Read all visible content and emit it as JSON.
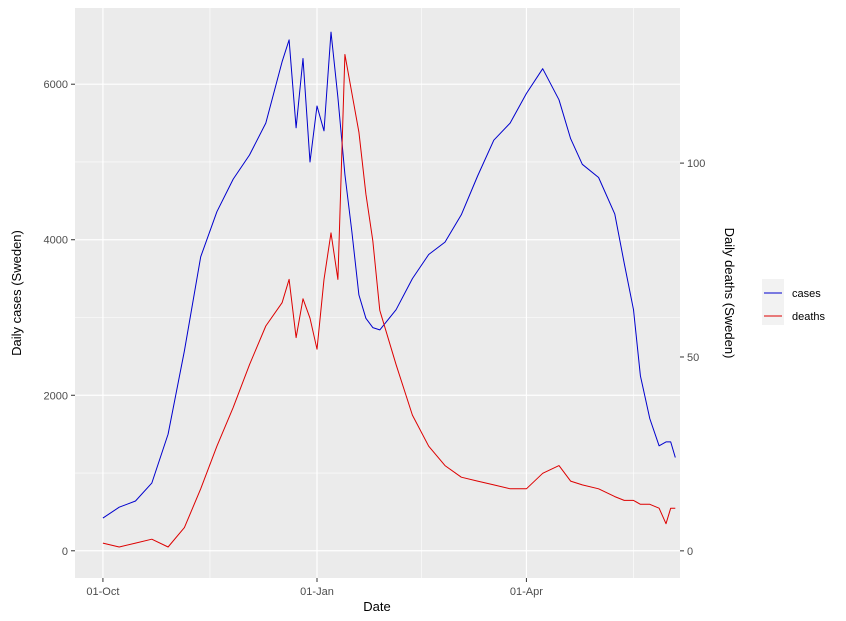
{
  "chart_data": {
    "type": "line",
    "xlabel": "Date",
    "ylabel_left": "Daily cases (Sweden)",
    "ylabel_right": "Daily deaths (Sweden)",
    "x_ticks": [
      "01-Oct",
      "01-Jan",
      "01-Apr"
    ],
    "x_tick_dates": [
      "2020-10-01",
      "2021-01-01",
      "2021-04-01"
    ],
    "xlim": [
      "2020-09-19",
      "2021-06-06"
    ],
    "y_left_ticks": [
      0,
      2000,
      4000,
      6000
    ],
    "y_left_lim": [
      -350,
      6980
    ],
    "y_right_ticks": [
      0,
      50,
      100
    ],
    "y_right_lim": [
      -7,
      140
    ],
    "grid": true,
    "legend_position": "right",
    "colors": {
      "cases": "#0000cd",
      "deaths": "#dd0000",
      "panel": "#ebebeb",
      "grid": "#ffffff"
    },
    "series": [
      {
        "name": "cases",
        "axis": "left",
        "x": [
          "2020-10-01",
          "2020-10-08",
          "2020-10-15",
          "2020-10-22",
          "2020-10-29",
          "2020-11-05",
          "2020-11-12",
          "2020-11-19",
          "2020-11-26",
          "2020-12-03",
          "2020-12-10",
          "2020-12-17",
          "2020-12-20",
          "2020-12-23",
          "2020-12-26",
          "2020-12-29",
          "2021-01-01",
          "2021-01-04",
          "2021-01-07",
          "2021-01-10",
          "2021-01-13",
          "2021-01-16",
          "2021-01-19",
          "2021-01-22",
          "2021-01-25",
          "2021-01-28",
          "2021-02-04",
          "2021-02-11",
          "2021-02-18",
          "2021-02-25",
          "2021-03-04",
          "2021-03-11",
          "2021-03-18",
          "2021-03-25",
          "2021-04-01",
          "2021-04-08",
          "2021-04-15",
          "2021-04-20",
          "2021-04-25",
          "2021-05-02",
          "2021-05-09",
          "2021-05-13",
          "2021-05-17",
          "2021-05-20",
          "2021-05-24",
          "2021-05-28",
          "2021-05-31",
          "2021-06-02",
          "2021-06-04"
        ],
        "values": [
          420,
          560,
          640,
          870,
          1500,
          2570,
          3780,
          4360,
          4780,
          5090,
          5500,
          6290,
          6570,
          5440,
          6330,
          5000,
          5720,
          5400,
          6670,
          5830,
          4840,
          4100,
          3290,
          2990,
          2870,
          2840,
          3100,
          3500,
          3810,
          3970,
          4320,
          4820,
          5280,
          5500,
          5880,
          6200,
          5800,
          5300,
          4970,
          4800,
          4330,
          3700,
          3100,
          2250,
          1700,
          1350,
          1400,
          1400,
          1200
        ]
      },
      {
        "name": "deaths",
        "axis": "right",
        "x": [
          "2020-10-01",
          "2020-10-08",
          "2020-10-15",
          "2020-10-22",
          "2020-10-29",
          "2020-11-05",
          "2020-11-12",
          "2020-11-19",
          "2020-11-26",
          "2020-12-03",
          "2020-12-10",
          "2020-12-17",
          "2020-12-20",
          "2020-12-23",
          "2020-12-26",
          "2020-12-29",
          "2021-01-01",
          "2021-01-04",
          "2021-01-07",
          "2021-01-10",
          "2021-01-13",
          "2021-01-16",
          "2021-01-19",
          "2021-01-22",
          "2021-01-25",
          "2021-01-28",
          "2021-02-04",
          "2021-02-11",
          "2021-02-18",
          "2021-02-25",
          "2021-03-04",
          "2021-03-11",
          "2021-03-18",
          "2021-03-25",
          "2021-04-01",
          "2021-04-08",
          "2021-04-15",
          "2021-04-20",
          "2021-04-25",
          "2021-05-02",
          "2021-05-09",
          "2021-05-13",
          "2021-05-17",
          "2021-05-20",
          "2021-05-24",
          "2021-05-28",
          "2021-05-31",
          "2021-06-02",
          "2021-06-04"
        ],
        "values": [
          2,
          1,
          2,
          3,
          1,
          6,
          16,
          27,
          37,
          48,
          58,
          64,
          70,
          55,
          65,
          60,
          52,
          70,
          82,
          70,
          128,
          118,
          108,
          92,
          80,
          62,
          48,
          35,
          27,
          22,
          19,
          18,
          17,
          16,
          16,
          20,
          22,
          18,
          17,
          16,
          14,
          13,
          13,
          12,
          12,
          11,
          7,
          11,
          11
        ]
      }
    ]
  }
}
